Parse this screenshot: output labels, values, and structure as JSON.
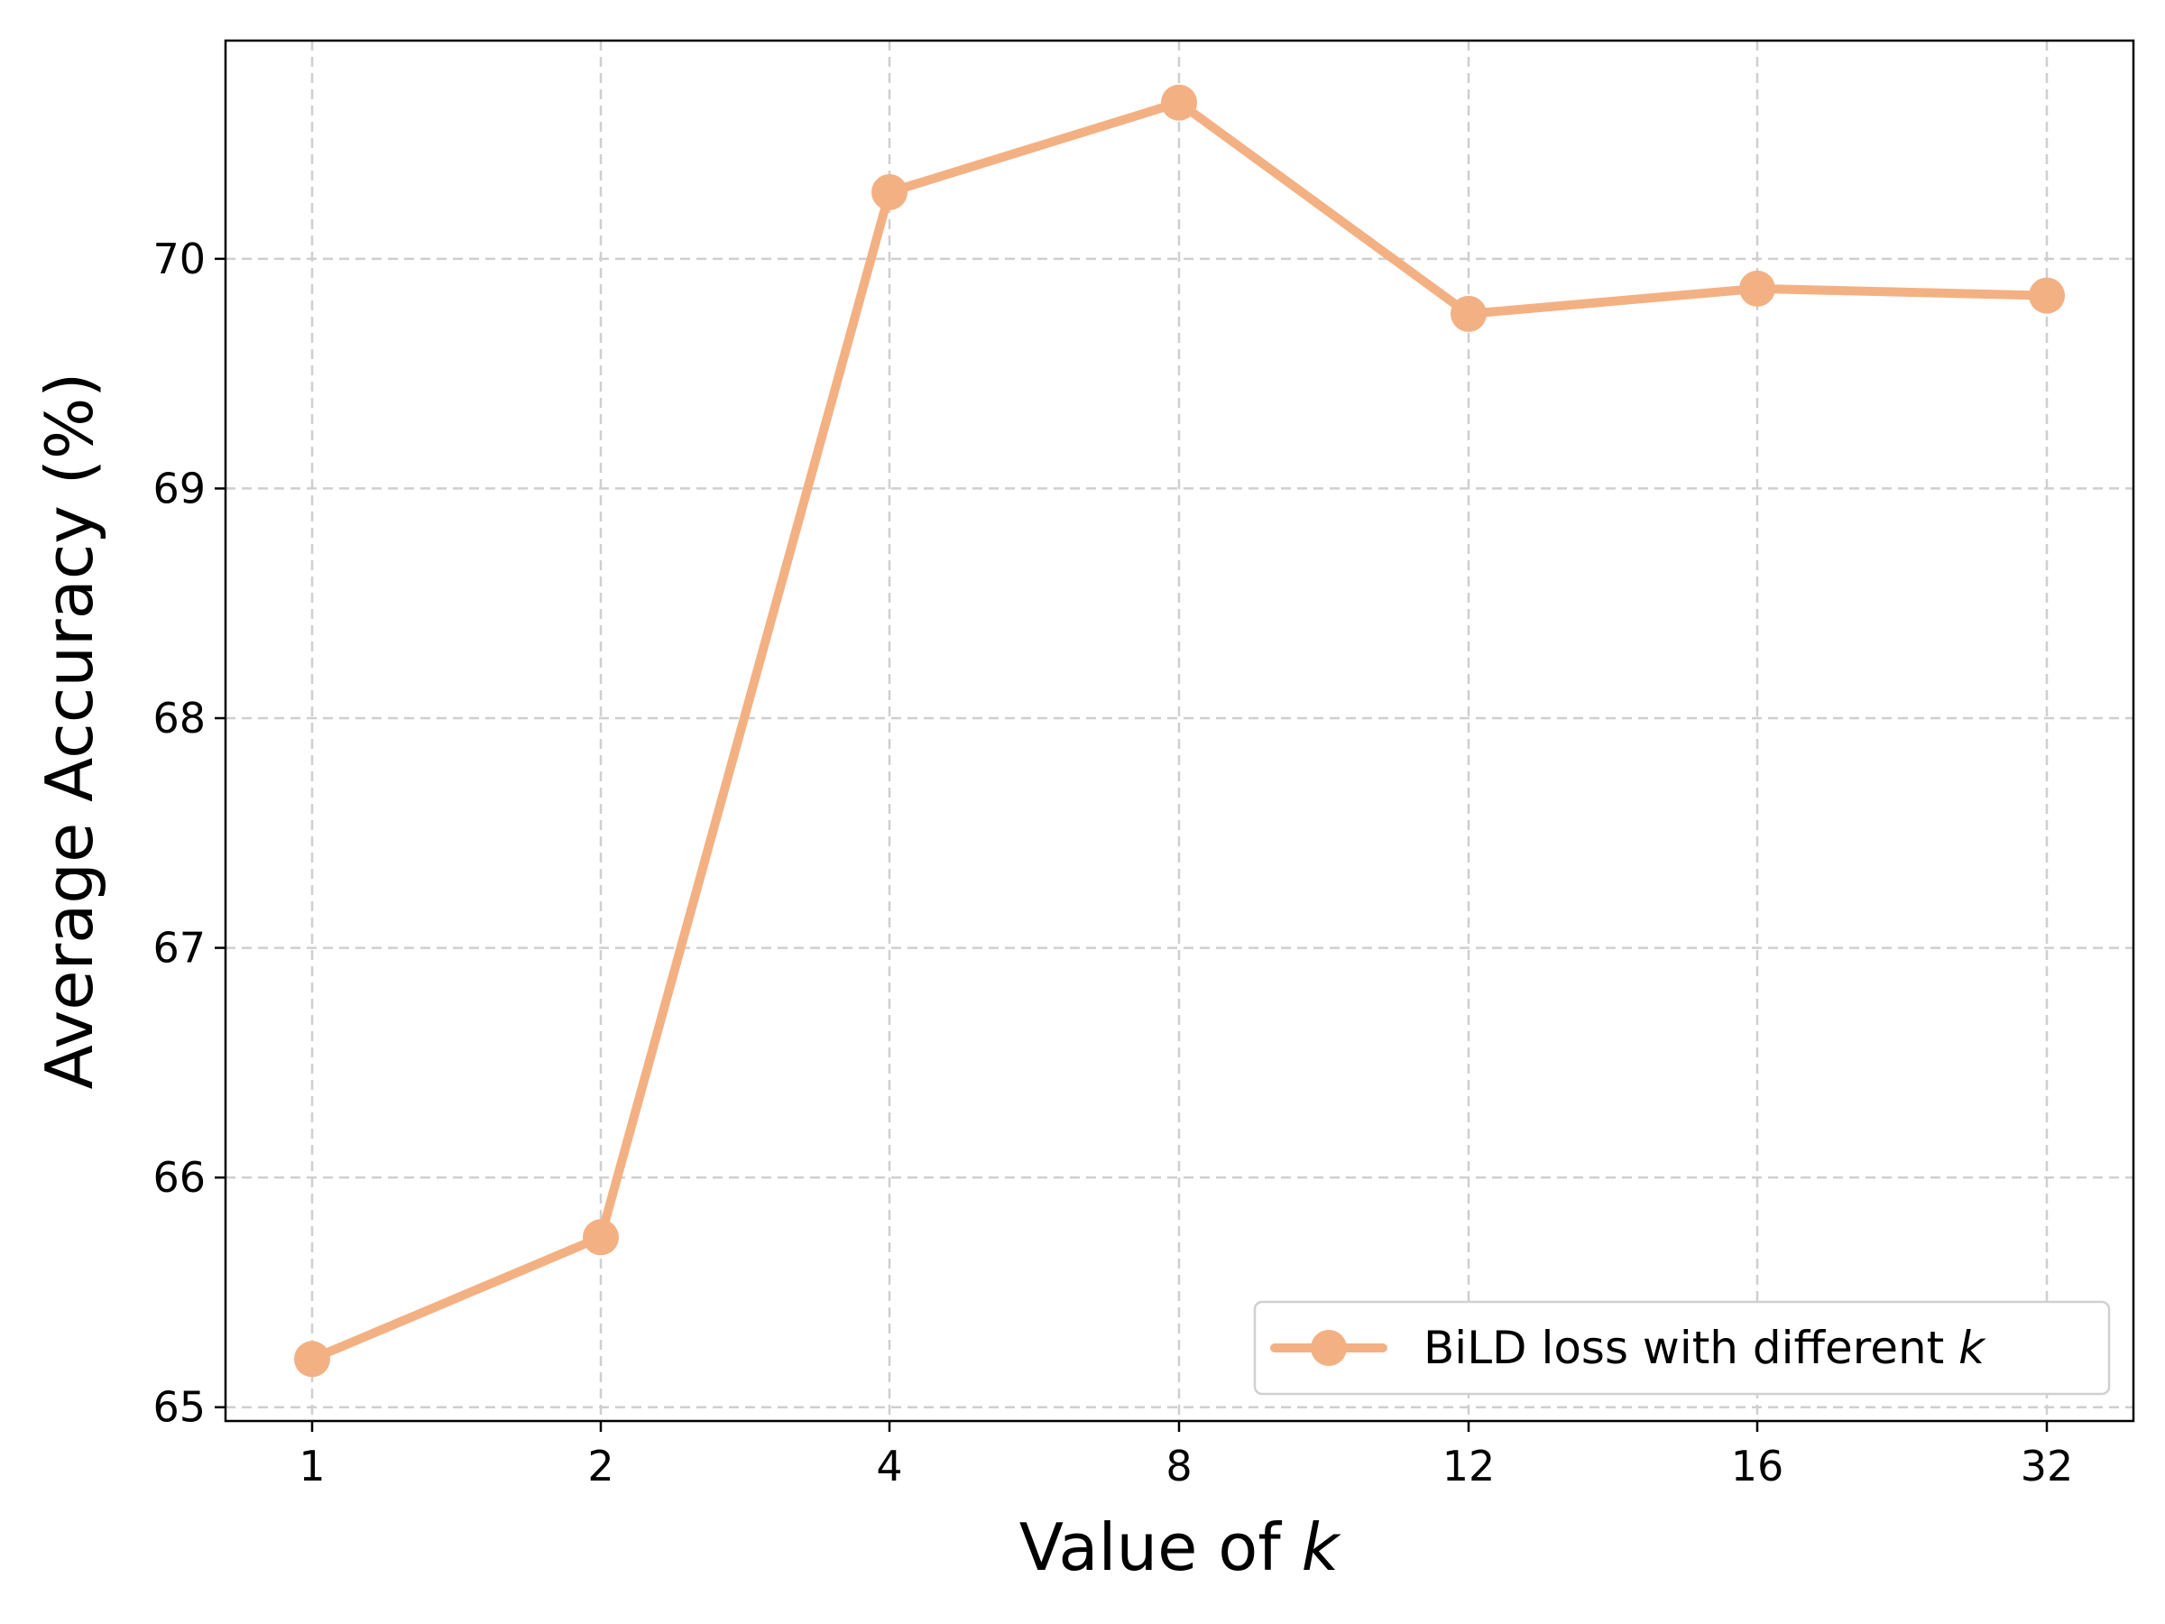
{
  "chart_data": {
    "type": "line",
    "title": "",
    "xlabel_prefix": "Value of ",
    "xlabel_var": "k",
    "ylabel": "Average Accuracy (%)",
    "categories": [
      "1",
      "2",
      "4",
      "8",
      "12",
      "16",
      "32"
    ],
    "y_ticks": [
      65,
      66,
      67,
      68,
      69,
      70
    ],
    "ylim": [
      64.94,
      70.95
    ],
    "grid": true,
    "legend_position": "lower-right",
    "series": [
      {
        "name_prefix": "BiLD loss with different ",
        "name_var": "k",
        "color": "#f3b183",
        "values": [
          65.21,
          65.74,
          70.29,
          70.68,
          69.76,
          69.87,
          69.84
        ]
      }
    ]
  }
}
